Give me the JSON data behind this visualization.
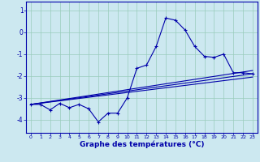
{
  "xlabel": "Graphe des températures (°C)",
  "background_color": "#cce8f0",
  "grid_color": "#99ccbb",
  "line_color": "#0000aa",
  "xlim": [
    -0.5,
    23.5
  ],
  "ylim": [
    -4.6,
    1.4
  ],
  "yticks": [
    1,
    0,
    -1,
    -2,
    -3,
    -4
  ],
  "xticks": [
    0,
    1,
    2,
    3,
    4,
    5,
    6,
    7,
    8,
    9,
    10,
    11,
    12,
    13,
    14,
    15,
    16,
    17,
    18,
    19,
    20,
    21,
    22,
    23
  ],
  "series": [
    [
      [
        0,
        -3.3
      ],
      [
        1,
        -3.3
      ],
      [
        2,
        -3.55
      ],
      [
        3,
        -3.25
      ],
      [
        4,
        -3.45
      ],
      [
        5,
        -3.3
      ],
      [
        6,
        -3.5
      ],
      [
        7,
        -4.1
      ],
      [
        8,
        -3.7
      ],
      [
        9,
        -3.7
      ],
      [
        10,
        -3.0
      ],
      [
        11,
        -1.65
      ],
      [
        12,
        -1.5
      ],
      [
        13,
        -0.65
      ],
      [
        14,
        0.65
      ],
      [
        15,
        0.55
      ],
      [
        16,
        0.1
      ],
      [
        17,
        -0.65
      ],
      [
        18,
        -1.1
      ],
      [
        19,
        -1.15
      ],
      [
        20,
        -1.0
      ],
      [
        21,
        -1.85
      ],
      [
        22,
        -1.85
      ],
      [
        23,
        -1.9
      ]
    ],
    [
      [
        0,
        -3.3
      ],
      [
        23,
        -1.9
      ]
    ],
    [
      [
        0,
        -3.3
      ],
      [
        23,
        -2.05
      ]
    ],
    [
      [
        0,
        -3.3
      ],
      [
        23,
        -1.75
      ]
    ]
  ]
}
